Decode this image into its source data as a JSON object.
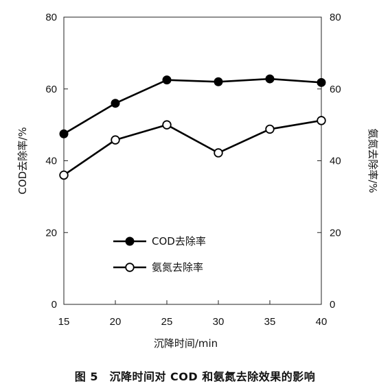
{
  "chart_data": {
    "type": "line",
    "x": [
      15,
      20,
      25,
      30,
      35,
      40
    ],
    "xlabel": "沉降时间/min",
    "xlim": [
      15,
      40
    ],
    "x_ticks": [
      "15",
      "20",
      "25",
      "30",
      "35",
      "40"
    ],
    "ylabel_left": "COD去除率/%",
    "ylabel_right": "氨氮去除率/%",
    "ylim": [
      0,
      80
    ],
    "y_ticks": [
      "0",
      "20",
      "40",
      "60",
      "80"
    ],
    "series": [
      {
        "name": "COD去除率",
        "values": [
          47.5,
          56.0,
          62.5,
          62.0,
          62.8,
          61.8
        ],
        "marker": "filled-circle",
        "axis": "left"
      },
      {
        "name": "氨氮去除率",
        "values": [
          36.0,
          45.8,
          50.0,
          42.2,
          48.8,
          51.2
        ],
        "marker": "open-circle",
        "axis": "right"
      }
    ],
    "grid": false,
    "legend_position": "center-left"
  },
  "caption": "图 5　沉降时间对 COD 和氨氮去除效果的影响"
}
